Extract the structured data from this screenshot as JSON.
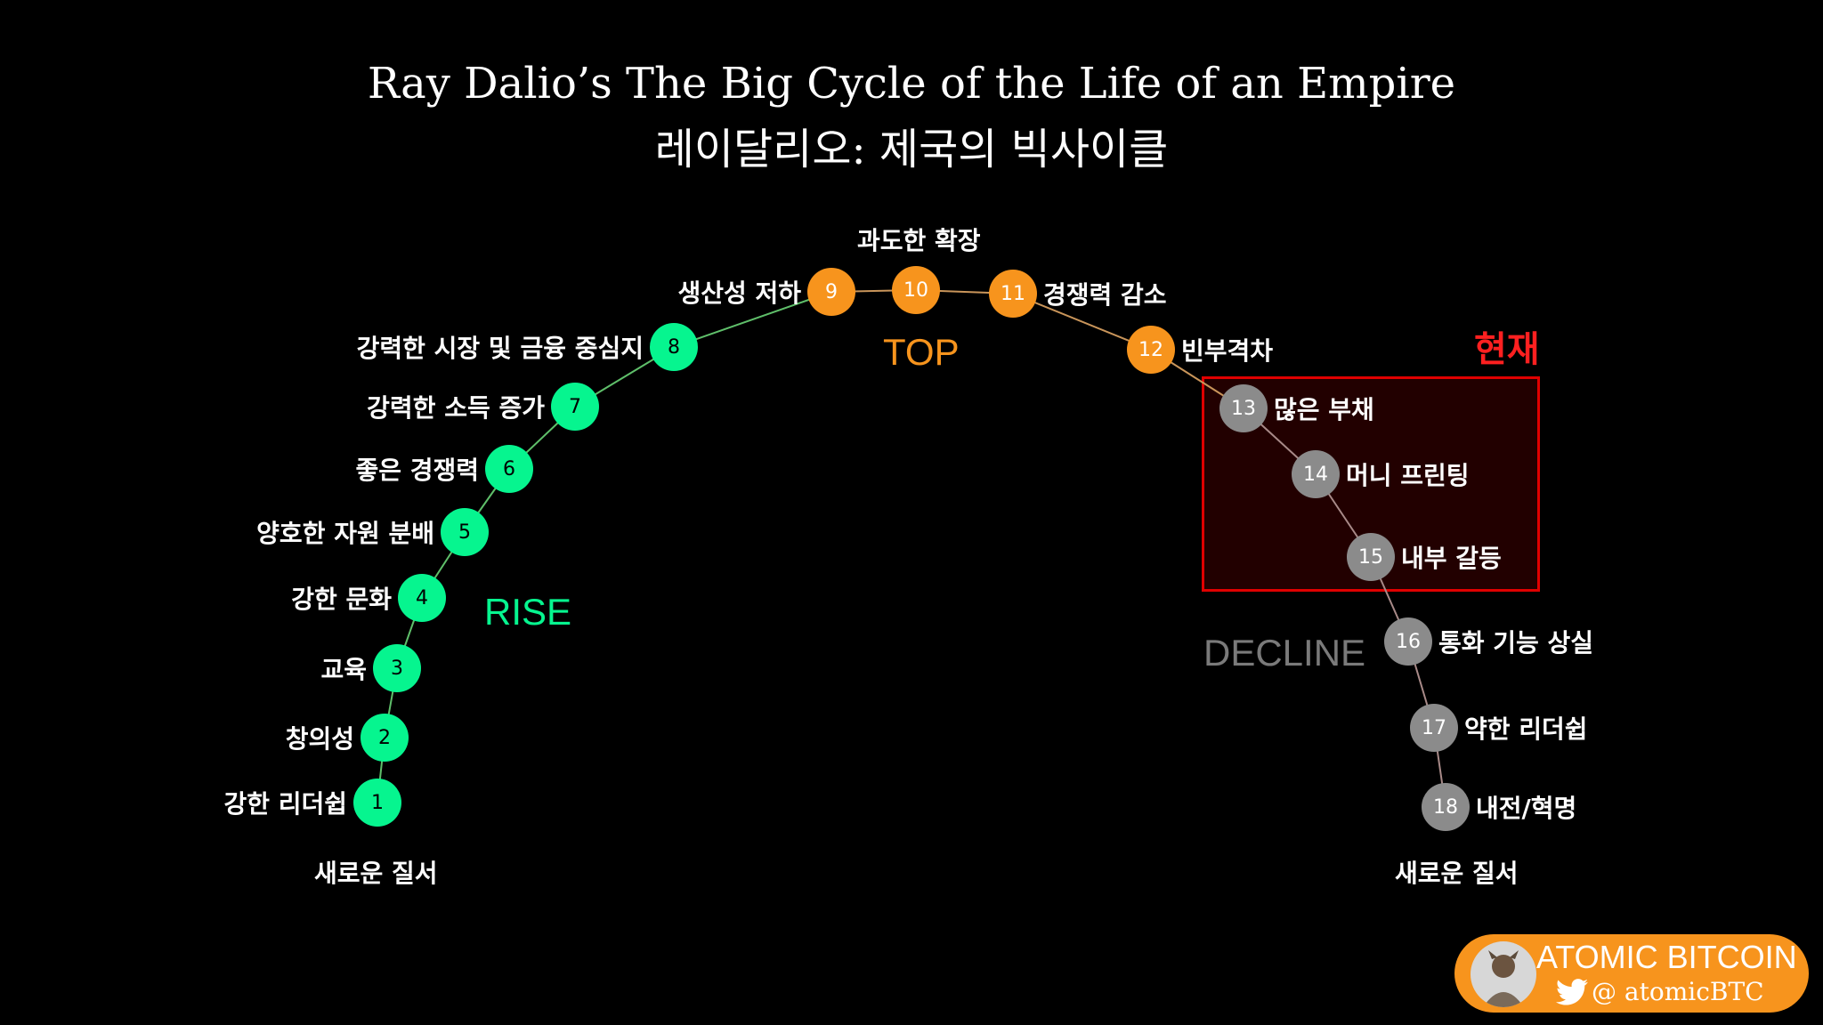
{
  "title": "Ray Dalio’s The Big Cycle of the Life of an Empire",
  "subtitle": "레이달리오: 제국의 빅사이클",
  "phases": {
    "rise": "RISE",
    "top": "TOP",
    "decline": "DECLINE"
  },
  "current_label": "현재",
  "new_order_left": "새로운 질서",
  "new_order_right": "새로운 질서",
  "colors": {
    "rise": "#06f58f",
    "top": "#f7941d",
    "decline": "#8b8b8b",
    "current": "#ff2020"
  },
  "stages": [
    {
      "num": "1",
      "label": "강한 리더쉽",
      "phase": "rise"
    },
    {
      "num": "2",
      "label": "창의성",
      "phase": "rise"
    },
    {
      "num": "3",
      "label": "교육",
      "phase": "rise"
    },
    {
      "num": "4",
      "label": "강한 문화",
      "phase": "rise"
    },
    {
      "num": "5",
      "label": "양호한 자원 분배",
      "phase": "rise"
    },
    {
      "num": "6",
      "label": "좋은 경쟁력",
      "phase": "rise"
    },
    {
      "num": "7",
      "label": "강력한 소득 증가",
      "phase": "rise"
    },
    {
      "num": "8",
      "label": "강력한 시장 및 금융 중심지",
      "phase": "rise"
    },
    {
      "num": "9",
      "label": "생산성 저하",
      "phase": "top"
    },
    {
      "num": "10",
      "label": "과도한 확장",
      "phase": "top"
    },
    {
      "num": "11",
      "label": "경쟁력 감소",
      "phase": "top"
    },
    {
      "num": "12",
      "label": "빈부격차",
      "phase": "top"
    },
    {
      "num": "13",
      "label": "많은 부채",
      "phase": "decline"
    },
    {
      "num": "14",
      "label": "머니 프린팅",
      "phase": "decline"
    },
    {
      "num": "15",
      "label": "내부 갈등",
      "phase": "decline"
    },
    {
      "num": "16",
      "label": "통화 기능 상실",
      "phase": "decline"
    },
    {
      "num": "17",
      "label": "약한 리더쉽",
      "phase": "decline"
    },
    {
      "num": "18",
      "label": "내전/혁명",
      "phase": "decline"
    }
  ],
  "brand": {
    "name": "ATOMIC BITCOIN",
    "handle": "@ atomicBTC"
  }
}
